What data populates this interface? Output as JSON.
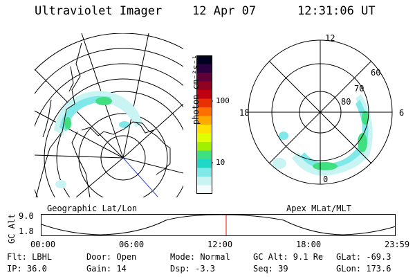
{
  "header": {
    "instrument": "Ultraviolet Imager",
    "date": "12 Apr 07",
    "time": "12:31:06 UT"
  },
  "left_panel": {
    "caption": "Geographic Lat/Lon"
  },
  "right_panel": {
    "caption": "Apex MLat/MLT",
    "mlt_labels": {
      "top": "12",
      "left": "18",
      "right": "6",
      "bottom": "0"
    },
    "lat_labels": [
      "60",
      "70",
      "80"
    ]
  },
  "colorbar": {
    "unit": "photon cm⁻²s⁻¹",
    "ticks": [
      "100",
      "10"
    ],
    "colors": [
      "#000020",
      "#2a0040",
      "#60003a",
      "#900020",
      "#c00010",
      "#e83000",
      "#ff7000",
      "#ffa800",
      "#ffe000",
      "#e0ff00",
      "#a0f000",
      "#40e080",
      "#20d8c8",
      "#80e8e8",
      "#c8f4f4",
      "#f4fcfc"
    ]
  },
  "altitude_strip": {
    "ylabel": "GC Alt",
    "yticks": [
      "9.0",
      "1.8"
    ],
    "xticks": [
      "00:00",
      "06:00",
      "12:00",
      "18:00",
      "23:59"
    ],
    "marker_color": "#ff0000"
  },
  "status": {
    "row1": {
      "filter": "Flt: LBHL",
      "door": "Door: Open",
      "mode": "Mode: Normal",
      "gc_alt": "GC Alt: 9.1 Re",
      "glat": "GLat: -69.3"
    },
    "row2": {
      "ip": "IP: 36.0",
      "gain": "Gain: 14",
      "dsp": "Dsp:    -3.3",
      "seq": "Seq: 39",
      "glon": "GLon: 173.6"
    }
  }
}
